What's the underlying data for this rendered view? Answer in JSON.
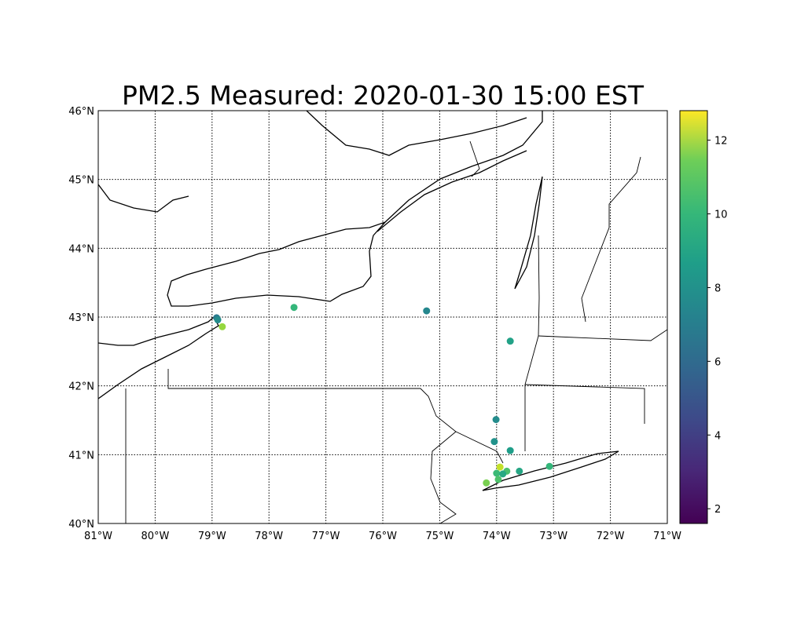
{
  "chart_data": {
    "type": "scatter",
    "title": "PM2.5 Measured: 2020-01-30 15:00 EST",
    "xlim": [
      -81,
      -71
    ],
    "ylim": [
      40,
      46
    ],
    "x_ticks": [
      "81°W",
      "80°W",
      "79°W",
      "78°W",
      "77°W",
      "76°W",
      "75°W",
      "74°W",
      "73°W",
      "72°W",
      "71°W"
    ],
    "y_ticks": [
      "40°N",
      "41°N",
      "42°N",
      "43°N",
      "44°N",
      "45°N",
      "46°N"
    ],
    "grid": true,
    "colormap": "viridis",
    "colorbar": {
      "range": [
        1.6,
        12.8
      ],
      "ticks": [
        "2",
        "4",
        "6",
        "8",
        "10",
        "12"
      ],
      "placement": "right"
    },
    "points": [
      {
        "lon": -78.92,
        "lat": 42.99,
        "value": 6.2
      },
      {
        "lon": -78.9,
        "lat": 42.96,
        "value": 7.0
      },
      {
        "lon": -78.82,
        "lat": 42.86,
        "value": 11.0
      },
      {
        "lon": -77.56,
        "lat": 43.14,
        "value": 9.0
      },
      {
        "lon": -75.23,
        "lat": 43.09,
        "value": 6.8
      },
      {
        "lon": -73.76,
        "lat": 42.65,
        "value": 8.0
      },
      {
        "lon": -74.01,
        "lat": 41.51,
        "value": 7.0
      },
      {
        "lon": -74.04,
        "lat": 41.19,
        "value": 7.3
      },
      {
        "lon": -73.76,
        "lat": 41.06,
        "value": 7.8
      },
      {
        "lon": -73.07,
        "lat": 40.83,
        "value": 9.0
      },
      {
        "lon": -73.6,
        "lat": 40.76,
        "value": 8.2
      },
      {
        "lon": -73.82,
        "lat": 40.76,
        "value": 9.5
      },
      {
        "lon": -73.94,
        "lat": 40.82,
        "value": 11.8
      },
      {
        "lon": -74.0,
        "lat": 40.73,
        "value": 9.2
      },
      {
        "lon": -73.89,
        "lat": 40.72,
        "value": 8.3
      },
      {
        "lon": -73.97,
        "lat": 40.64,
        "value": 9.6
      },
      {
        "lon": -74.18,
        "lat": 40.59,
        "value": 10.5
      }
    ]
  }
}
